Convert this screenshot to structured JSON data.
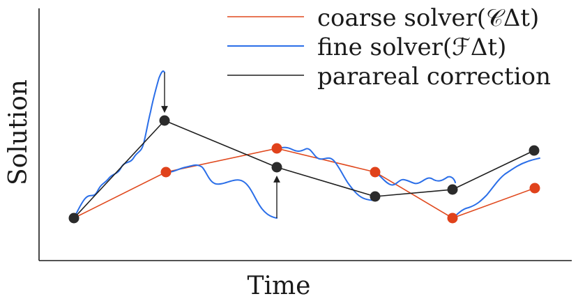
{
  "axes": {
    "xlabel": "Time",
    "ylabel": "Solution"
  },
  "legend": {
    "placement": "top-right",
    "items": [
      {
        "label": "coarse solver(𝒞Δt)",
        "color": "#e0491e"
      },
      {
        "label": "fine solver(ℱΔt)",
        "color": "#2a6ee8"
      },
      {
        "label": "parareal correction",
        "color": "#1f1f1f"
      }
    ]
  },
  "colors": {
    "coarse": "#e0491e",
    "fine": "#2a6ee8",
    "correction": "#1f1f1f",
    "black_node": "#2b2b2b",
    "red_node": "#e0421b"
  }
}
